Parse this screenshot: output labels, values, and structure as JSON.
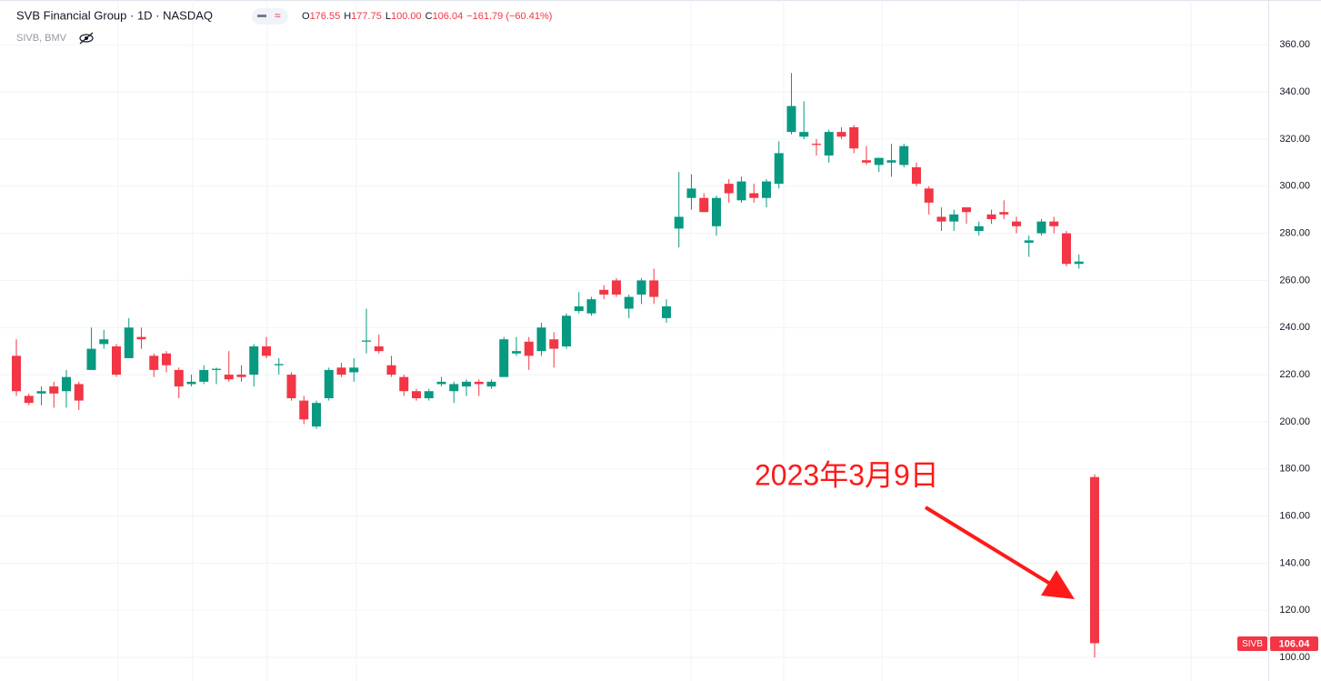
{
  "header": {
    "title": "SVB Financial Group · 1D · NASDAQ",
    "subtitle": "SIVB, BMV",
    "ohlc_legend": [
      {
        "key": "O",
        "text": "176.55"
      },
      {
        "key": "H",
        "text": "177.75"
      },
      {
        "key": "L",
        "text": "100.00"
      },
      {
        "key": "C",
        "text": "106.04"
      }
    ],
    "change": "−161.79 (−60.41%)"
  },
  "price_tag": {
    "symbol": "SIVB",
    "price": "106.04"
  },
  "chart_data": {
    "type": "candlestick",
    "annotation": "2023年3月9日",
    "up_color": "#089981",
    "down_color": "#f23645",
    "ylim": [
      90,
      379
    ],
    "yticks": [
      {
        "value": 100,
        "label": "100.00"
      },
      {
        "value": 120,
        "label": "120.00"
      },
      {
        "value": 140,
        "label": "140.00"
      },
      {
        "value": 160,
        "label": "160.00"
      },
      {
        "value": 180,
        "label": "180.00"
      },
      {
        "value": 200,
        "label": "200.00"
      },
      {
        "value": 220,
        "label": "220.00"
      },
      {
        "value": 240,
        "label": "240.00"
      },
      {
        "value": 260,
        "label": "260.00"
      },
      {
        "value": 280,
        "label": "280.00"
      },
      {
        "value": 300,
        "label": "300.00"
      },
      {
        "value": 320,
        "label": "320.00"
      },
      {
        "value": 340,
        "label": "340.00"
      },
      {
        "value": 360,
        "label": "360.00"
      }
    ],
    "grid": true,
    "open": [
      228,
      211,
      212,
      215,
      213,
      216,
      222,
      233,
      232,
      227,
      236,
      228,
      229,
      222,
      216,
      217,
      222,
      220,
      220,
      220,
      232,
      224,
      220,
      209,
      198,
      210,
      223,
      221,
      234,
      232,
      224,
      219,
      213,
      210,
      216,
      213,
      215,
      217,
      215,
      219,
      229,
      234,
      230,
      235,
      232,
      247,
      246,
      256,
      260,
      248,
      254,
      260,
      244,
      282,
      295,
      295,
      283,
      301,
      294,
      297,
      295,
      301,
      323,
      321,
      318,
      313,
      323,
      325,
      311,
      309,
      310,
      309,
      308,
      299,
      287,
      285,
      291,
      281,
      288,
      289,
      285,
      276,
      280,
      285,
      280,
      267,
      176.55
    ],
    "high": [
      235,
      212,
      215,
      217,
      222,
      217,
      240,
      239,
      233,
      244,
      240,
      229,
      230,
      223,
      220,
      224,
      223,
      230,
      224,
      233,
      236,
      227,
      221,
      211,
      209,
      223,
      225,
      227,
      248,
      237,
      228,
      220,
      214,
      214,
      219,
      217,
      218,
      218,
      218,
      236,
      236,
      236,
      242,
      238,
      246,
      255,
      253,
      258,
      261,
      254,
      261,
      265,
      252,
      306,
      305,
      297,
      296,
      303,
      304,
      301,
      303,
      319,
      348,
      336,
      320,
      324,
      325,
      326,
      317,
      312,
      318,
      318,
      310,
      300,
      291,
      290,
      291,
      285,
      290,
      294,
      287,
      279,
      286,
      287,
      281,
      271,
      177.75
    ],
    "low": [
      211,
      207,
      207,
      206,
      206,
      205,
      222,
      231,
      219,
      227,
      231,
      219,
      221,
      210,
      215,
      216,
      216,
      217,
      217,
      215,
      227,
      220,
      209,
      199,
      197,
      209,
      219,
      217,
      229,
      229,
      219,
      211,
      209,
      209,
      215,
      208,
      211,
      211,
      214,
      219,
      228,
      222,
      228,
      223,
      231,
      246,
      245,
      252,
      253,
      244,
      250,
      250,
      242,
      274,
      290,
      289,
      279,
      293,
      293,
      293,
      291,
      299,
      322,
      320,
      313,
      310,
      320,
      314,
      309,
      306,
      304,
      308,
      300,
      288,
      281,
      281,
      284,
      279,
      284,
      286,
      280,
      270,
      279,
      280,
      266,
      265,
      100
    ],
    "close": [
      213,
      208,
      213,
      212,
      219,
      209,
      231,
      235,
      220,
      240,
      235,
      222,
      224,
      215,
      217,
      222,
      222.5,
      218,
      219,
      232,
      228,
      224.5,
      210,
      201,
      208,
      222,
      220,
      223,
      234.5,
      230,
      220,
      213,
      210,
      213,
      217,
      216,
      217,
      216,
      217,
      235,
      230,
      228,
      240,
      231,
      245,
      249,
      252,
      254,
      254,
      253,
      260,
      253,
      249,
      287,
      299,
      289,
      295,
      297,
      302,
      295,
      302,
      314,
      334,
      323,
      317.5,
      323,
      321,
      316,
      310,
      312,
      311,
      317,
      301,
      293,
      285,
      288,
      289,
      283,
      286,
      288,
      283,
      277,
      285,
      283,
      267,
      268,
      106.04
    ]
  }
}
